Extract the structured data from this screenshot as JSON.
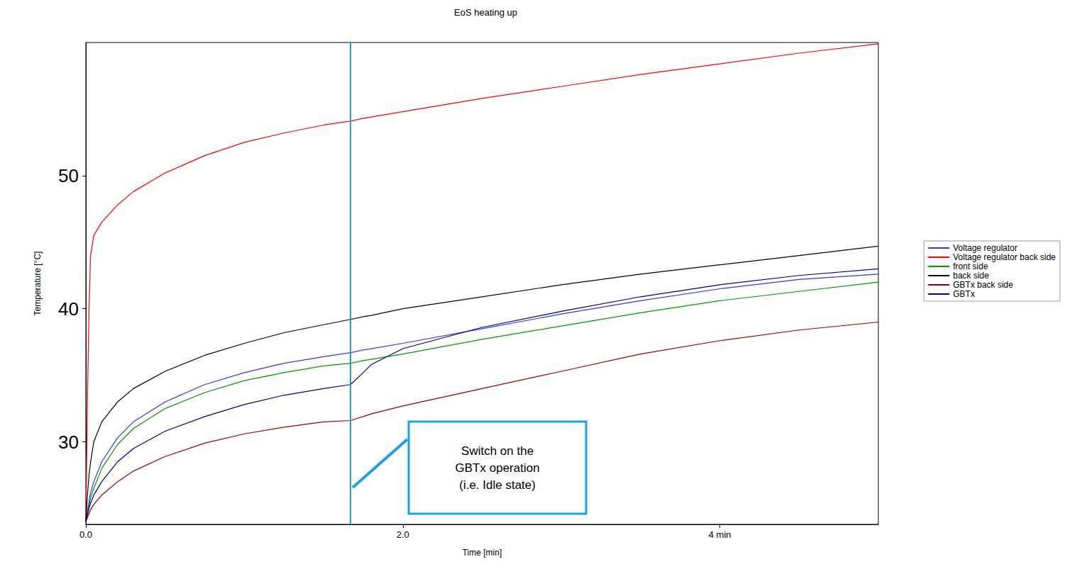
{
  "chart_data": {
    "type": "line",
    "title": "EoS heating up",
    "x_label": "Time [min]",
    "y_label": "Temperature [°C]",
    "x": [
      0,
      0.01,
      0.02,
      0.03,
      0.05,
      0.1,
      0.2,
      0.3,
      0.5,
      0.75,
      1.0,
      1.25,
      1.5,
      1.67,
      1.75,
      1.8,
      2.0,
      2.5,
      3.0,
      3.5,
      4.0,
      4.5,
      5.0
    ],
    "series": [
      {
        "name": "Voltage regulator",
        "color": "#3333ff",
        "values": [
          24,
          24.8,
          25.5,
          26.2,
          27,
          28.5,
          30.3,
          31.5,
          33.0,
          34.3,
          35.2,
          35.9,
          36.4,
          36.7,
          36.9,
          37.0,
          37.4,
          38.5,
          39.6,
          40.6,
          41.5,
          42.2,
          42.6
        ]
      },
      {
        "name": "Voltage regulator back side",
        "color": "#ff0000",
        "values": [
          24,
          33,
          40,
          44,
          45.5,
          46.5,
          47.8,
          48.8,
          50.2,
          51.5,
          52.5,
          53.2,
          53.8,
          54.1,
          54.3,
          54.4,
          54.8,
          55.8,
          56.7,
          57.6,
          58.4,
          59.2,
          59.9
        ]
      },
      {
        "name": "front side",
        "color": "#009900",
        "values": [
          24,
          24.6,
          25.2,
          25.8,
          26.5,
          28,
          29.8,
          31,
          32.5,
          33.7,
          34.6,
          35.2,
          35.7,
          35.9,
          36.1,
          36.2,
          36.6,
          37.7,
          38.7,
          39.7,
          40.6,
          41.3,
          42.0
        ]
      },
      {
        "name": "back side",
        "color": "#000000",
        "values": [
          24,
          26,
          27.5,
          28.5,
          30,
          31.5,
          33,
          34,
          35.3,
          36.5,
          37.4,
          38.2,
          38.8,
          39.2,
          39.4,
          39.5,
          40.0,
          40.9,
          41.8,
          42.6,
          43.3,
          44.0,
          44.7
        ]
      },
      {
        "name": "GBTx back side",
        "color": "#990000",
        "values": [
          24,
          24.3,
          24.6,
          24.9,
          25.3,
          26,
          27,
          27.8,
          28.9,
          29.9,
          30.6,
          31.1,
          31.5,
          31.6,
          31.9,
          32.1,
          32.7,
          34.0,
          35.3,
          36.6,
          37.6,
          38.4,
          39.0
        ]
      },
      {
        "name": "GBTx",
        "color": "#000080",
        "values": [
          24,
          24.5,
          25,
          25.4,
          26,
          27,
          28.5,
          29.5,
          30.8,
          31.9,
          32.8,
          33.5,
          34.0,
          34.3,
          35.2,
          35.8,
          37.0,
          38.6,
          39.8,
          40.9,
          41.8,
          42.5,
          43.0
        ]
      }
    ],
    "xlim": [
      0,
      5
    ],
    "xticks": [
      {
        "value": 0,
        "label": "0.0"
      },
      {
        "value": 2,
        "label": "2.0"
      },
      {
        "value": 4,
        "label": "4 min"
      }
    ],
    "ylim": [
      23.8,
      60
    ],
    "yticks": [
      30,
      40,
      50
    ],
    "grid": false,
    "legend": "right",
    "annotations": [
      {
        "x": 1.67,
        "text": "Switch on the\nGBTx operation\n(i.e. Idle state)",
        "color": "#1ba1e2"
      }
    ]
  }
}
